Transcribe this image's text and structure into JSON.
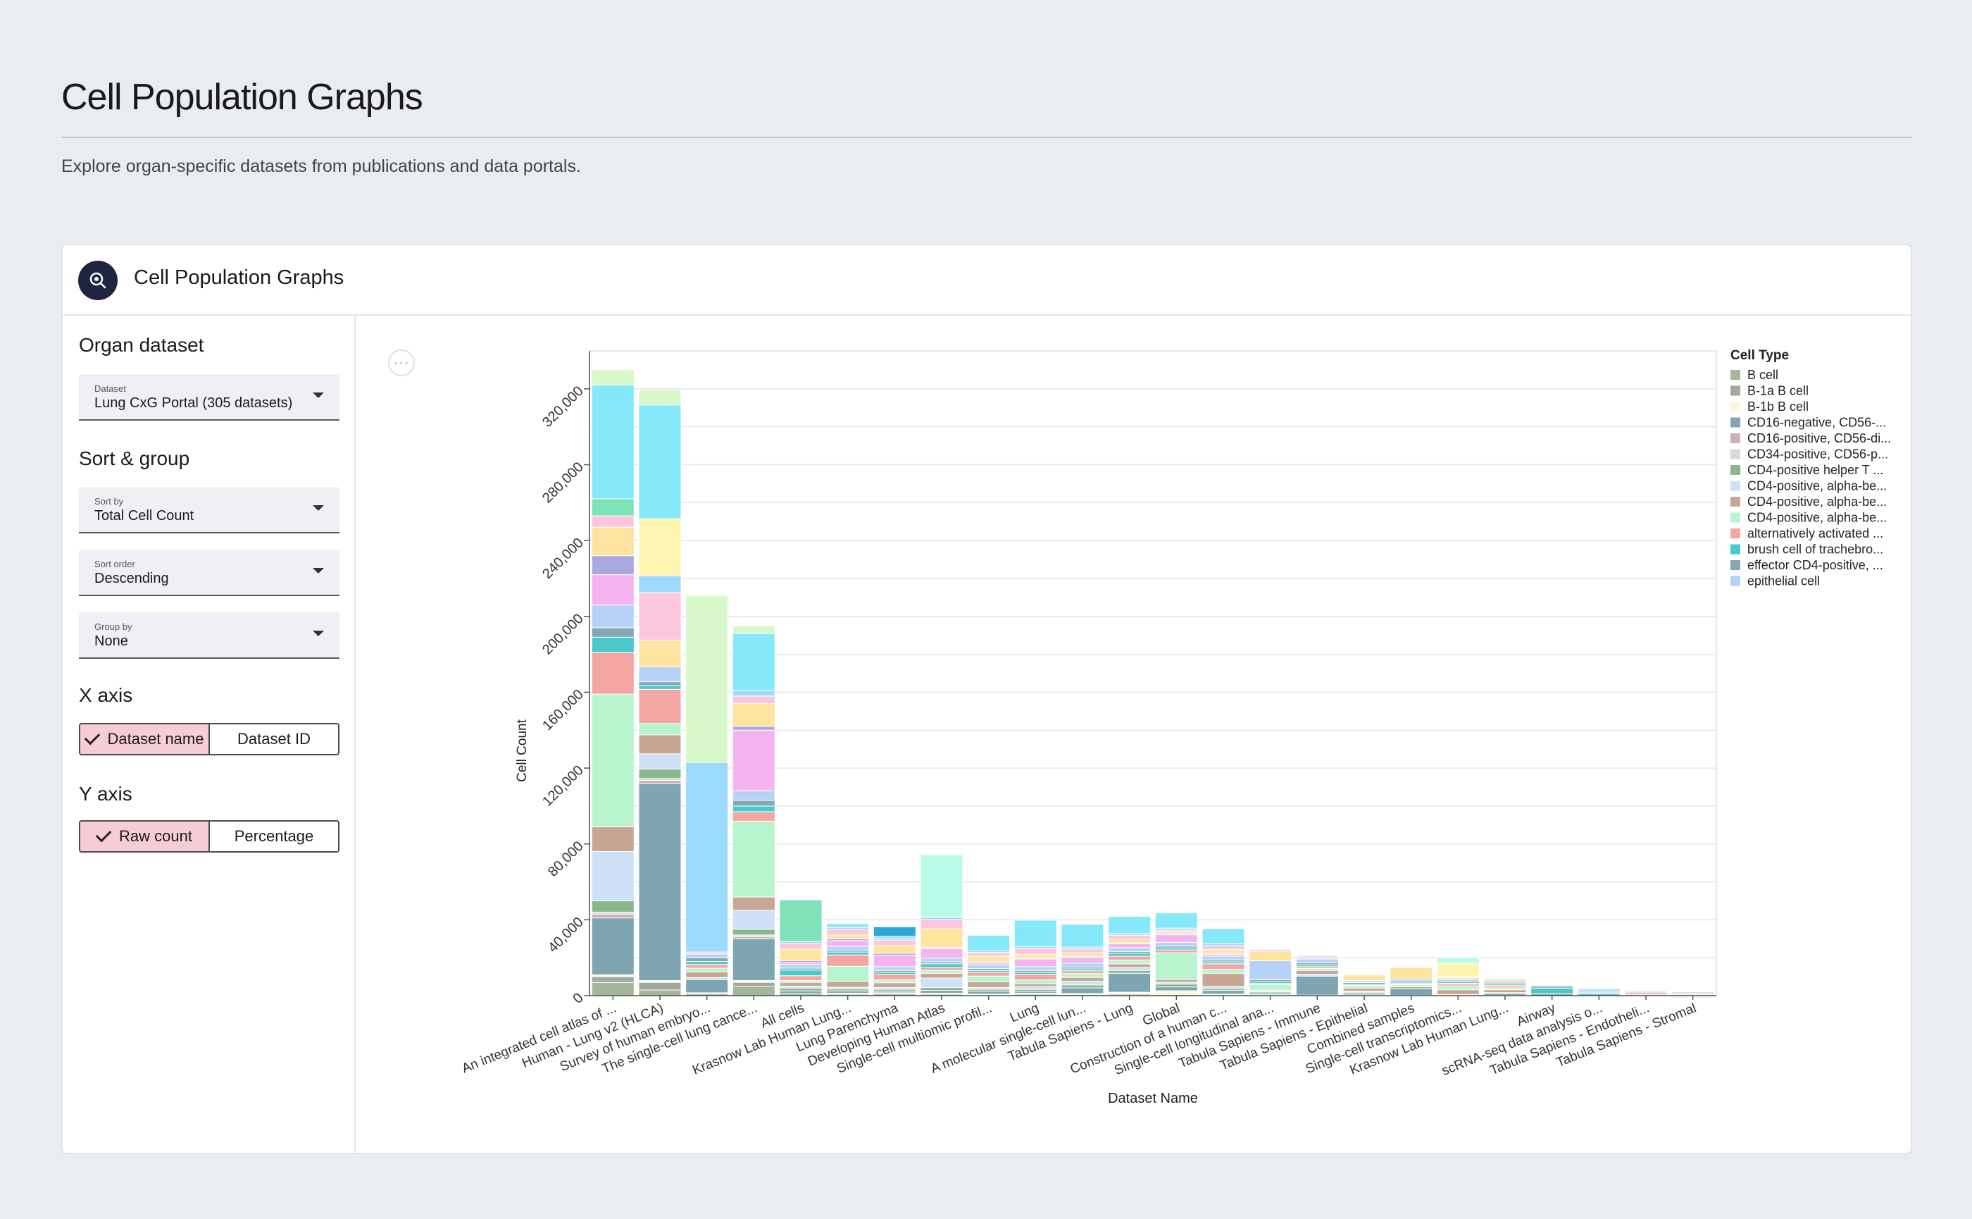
{
  "page": {
    "title": "Cell Population Graphs",
    "subtitle": "Explore organ-specific datasets from publications and data portals."
  },
  "card": {
    "title": "Cell Population Graphs",
    "icon": "search-magnifier-icon",
    "icon_color": "#1f2440"
  },
  "sidebar": {
    "organ_section": "Organ dataset",
    "dataset_select": {
      "label": "Dataset",
      "value": "Lung CxG Portal (305 datasets)"
    },
    "sort_section": "Sort & group",
    "sort_by": {
      "label": "Sort by",
      "value": "Total Cell Count"
    },
    "sort_order": {
      "label": "Sort order",
      "value": "Descending"
    },
    "group_by": {
      "label": "Group by",
      "value": "None"
    },
    "x_axis_section": "X axis",
    "x_axis_options": [
      "Dataset name",
      "Dataset ID"
    ],
    "x_axis_selected": "Dataset name",
    "y_axis_section": "Y axis",
    "y_axis_options": [
      "Raw count",
      "Percentage"
    ],
    "y_axis_selected": "Raw count",
    "active_toggle_color": "#f6cdd6"
  },
  "menu_button": {
    "label": "···",
    "icon": "more-horizontal-icon"
  },
  "chart_data": {
    "type": "bar",
    "stacked": true,
    "xlabel": "Dataset Name",
    "ylabel": "Cell Count",
    "ylim": [
      0,
      340000
    ],
    "yticks": [
      0,
      40000,
      80000,
      120000,
      160000,
      200000,
      240000,
      280000,
      320000
    ],
    "ytick_labels": [
      "0",
      "40,000",
      "80,000",
      "120,000",
      "160,000",
      "200,000",
      "240,000",
      "280,000",
      "320,000"
    ],
    "grid": true,
    "legend_title": "Cell Type",
    "legend_position": "right",
    "categories": [
      "An integrated cell atlas of ...",
      "Human - Lung v2 (HLCA)",
      "Survey of human embryo...",
      "The single-cell lung cance...",
      "All cells",
      "Krasnow Lab Human Lung...",
      "Lung Parenchyma",
      "Developing Human Atlas",
      "Single-cell multiomic profil...",
      "Lung",
      "A molecular single-cell lun...",
      "Tabula Sapiens - Lung",
      "Global",
      "Construction of a human c...",
      "Single-cell longitudinal ana...",
      "Tabula Sapiens - Immune",
      "Tabula Sapiens - Epithelial",
      "Combined samples",
      "Single-cell transcriptomics...",
      "Krasnow Lab Human Lung...",
      "Airway",
      "scRNA-seq data analysis o...",
      "Tabula Sapiens - Endotheli...",
      "Tabula Sapiens - Stromal"
    ],
    "series": [
      {
        "name": "B cell",
        "color": "#a4b79c",
        "values": [
          7000,
          3000,
          1000,
          5000,
          1000,
          800,
          1000,
          800,
          300,
          800,
          600,
          800,
          600,
          300,
          200,
          300,
          400,
          200,
          100,
          100,
          0,
          0,
          0,
          0
        ]
      },
      {
        "name": "B-1a B cell",
        "color": "#a1a89c",
        "values": [
          3000,
          4000,
          0,
          2000,
          0,
          0,
          0,
          0,
          0,
          0,
          0,
          0,
          0,
          0,
          0,
          0,
          0,
          0,
          0,
          0,
          0,
          0,
          0,
          0
        ]
      },
      {
        "name": "B-1b B cell",
        "color": "#fbf7dc",
        "values": [
          1000,
          1000,
          500,
          1000,
          0,
          500,
          500,
          500,
          500,
          500,
          500,
          1000,
          2000,
          500,
          200,
          0,
          0,
          0,
          0,
          0,
          0,
          0,
          0,
          0
        ]
      },
      {
        "name": "CD16-negative, CD56-...",
        "color": "#7ea6b2",
        "values": [
          30000,
          104000,
          7000,
          22000,
          1500,
          1200,
          800,
          1500,
          1500,
          1000,
          3000,
          10000,
          2000,
          2000,
          500,
          10000,
          1000,
          3500,
          0,
          1000,
          1000,
          0,
          0,
          0
        ]
      },
      {
        "name": "CD16-positive, CD56-di...",
        "color": "#c9b0b9",
        "values": [
          2000,
          1500,
          0,
          1000,
          0,
          0,
          0,
          0,
          0,
          0,
          0,
          0,
          0,
          0,
          0,
          0,
          0,
          0,
          0,
          0,
          0,
          0,
          0,
          0
        ]
      },
      {
        "name": "CD34-positive, CD56-p...",
        "color": "#d7dbd3",
        "values": [
          1000,
          1000,
          0,
          1000,
          0,
          0,
          0,
          0,
          0,
          0,
          0,
          0,
          0,
          0,
          0,
          0,
          0,
          0,
          0,
          0,
          0,
          0,
          0,
          0
        ]
      },
      {
        "name": "CD4-positive helper T ...",
        "color": "#8ab88e",
        "values": [
          6000,
          5000,
          0,
          3000,
          1500,
          1000,
          1000,
          1500,
          1000,
          1000,
          1500,
          1500,
          1500,
          1000,
          1000,
          0,
          500,
          0,
          0,
          0,
          0,
          0,
          0,
          0
        ]
      },
      {
        "name": "CD4-positive, alpha-be...",
        "color": "#cde0f6",
        "values": [
          26000,
          8000,
          1000,
          10000,
          1000,
          1000,
          1000,
          5000,
          1000,
          1500,
          2000,
          1500,
          1000,
          1000,
          500,
          1000,
          500,
          0,
          500,
          500,
          0,
          0,
          0,
          0
        ]
      },
      {
        "name": "CD4-positive, alpha-be...",
        "color": "#c7a694",
        "values": [
          13000,
          10000,
          3000,
          7000,
          2000,
          3000,
          2500,
          2500,
          3000,
          1500,
          2000,
          2000,
          1500,
          7000,
          500,
          2000,
          1500,
          1000,
          2500,
          1500,
          0,
          0,
          500,
          500
        ]
      },
      {
        "name": "CD4-positive, alpha-be...",
        "color": "#b8f5cf",
        "values": [
          70000,
          6000,
          2000,
          40000,
          1000,
          8000,
          1500,
          1500,
          3000,
          2000,
          2000,
          2000,
          14000,
          2000,
          3000,
          1000,
          1000,
          1000,
          2000,
          1000,
          0,
          0,
          0,
          0
        ]
      },
      {
        "name": "alternatively activated ...",
        "color": "#f4a6a2",
        "values": [
          22000,
          18000,
          2000,
          5000,
          2500,
          6000,
          3000,
          1500,
          2000,
          3000,
          1500,
          2000,
          1500,
          3000,
          500,
          1000,
          500,
          500,
          1000,
          1000,
          0,
          0,
          1000,
          500
        ]
      },
      {
        "name": "brush cell of trachebro...",
        "color": "#4ac9cb",
        "values": [
          8000,
          2000,
          1500,
          3000,
          3000,
          1500,
          1000,
          2000,
          1000,
          1000,
          1000,
          1500,
          1000,
          1000,
          1000,
          1000,
          500,
          500,
          500,
          500,
          3000,
          1000,
          500,
          500
        ]
      },
      {
        "name": "effector CD4-positive, ...",
        "color": "#82a8b4",
        "values": [
          5000,
          2000,
          2000,
          3000,
          1000,
          1000,
          1000,
          1000,
          1000,
          1000,
          1000,
          1000,
          1000,
          1000,
          1000,
          1000,
          1000,
          1000,
          1000,
          1000,
          1000,
          500,
          500,
          500
        ]
      },
      {
        "name": "epithelial cell",
        "color": "#b6d3f7",
        "values": [
          12000,
          8000,
          2000,
          5000,
          2000,
          2000,
          2000,
          2000,
          2000,
          2000,
          2000,
          2000,
          2000,
          2000,
          10000,
          2000,
          1000,
          1000,
          1000,
          1000,
          500,
          1000,
          0,
          0
        ]
      },
      {
        "name": "",
        "color": "#f5b3ef",
        "values": [
          16000,
          0,
          0,
          32000,
          1000,
          3000,
          6000,
          5000,
          1000,
          4000,
          3000,
          2000,
          4000,
          1000,
          0,
          0,
          0,
          0,
          0,
          0,
          0,
          0,
          0,
          0
        ]
      },
      {
        "name": "",
        "color": "#a9a8e0",
        "values": [
          10000,
          0,
          0,
          2000,
          1000,
          1000,
          1000,
          500,
          500,
          500,
          500,
          500,
          500,
          500,
          0,
          500,
          0,
          0,
          0,
          0,
          0,
          0,
          0,
          0
        ]
      },
      {
        "name": "",
        "color": "#fde5a0",
        "values": [
          15000,
          14000,
          0,
          12000,
          6000,
          2000,
          4000,
          10000,
          3000,
          2000,
          2000,
          2000,
          1000,
          2000,
          5000,
          0,
          3000,
          6000,
          1000,
          1000,
          0,
          0,
          0,
          0
        ]
      },
      {
        "name": "",
        "color": "#fdc6dc",
        "values": [
          6000,
          25000,
          1000,
          4000,
          3000,
          3000,
          3000,
          5000,
          2000,
          3000,
          2000,
          2000,
          1000,
          2000,
          1000,
          1000,
          500,
          500,
          500,
          500,
          0,
          0,
          0,
          0
        ]
      },
      {
        "name": "",
        "color": "#9bdafb",
        "values": [
          0,
          9000,
          100000,
          3000,
          1000,
          1000,
          1000,
          1000,
          1000,
          1000,
          1000,
          1000,
          1000,
          1000,
          0,
          500,
          0,
          0,
          0,
          0,
          0,
          1000,
          0,
          0
        ]
      },
      {
        "name": "",
        "color": "#7fe1b8",
        "values": [
          9000,
          0,
          0,
          0,
          22000,
          0,
          0,
          0,
          0,
          0,
          0,
          0,
          0,
          0,
          0,
          0,
          0,
          0,
          0,
          0,
          0,
          0,
          0,
          0
        ]
      },
      {
        "name": "",
        "color": "#fff5b0",
        "values": [
          0,
          30000,
          0,
          0,
          0,
          0,
          0,
          0,
          0,
          0,
          0,
          0,
          0,
          0,
          0,
          0,
          0,
          0,
          7000,
          0,
          0,
          0,
          0,
          0
        ]
      },
      {
        "name": "",
        "color": "#b8fbe9",
        "values": [
          0,
          0,
          0,
          0,
          0,
          0,
          0,
          33000,
          0,
          0,
          0,
          0,
          0,
          0,
          0,
          0,
          0,
          0,
          3000,
          0,
          0,
          0,
          0,
          0
        ]
      },
      {
        "name": "",
        "color": "#85e8fb",
        "values": [
          60000,
          60000,
          0,
          30000,
          0,
          2000,
          1000,
          0,
          8000,
          14000,
          12000,
          9000,
          8000,
          8000,
          0,
          0,
          0,
          0,
          0,
          0,
          0,
          0,
          0,
          0
        ]
      },
      {
        "name": "",
        "color": "#d9f8c9",
        "values": [
          8000,
          8000,
          88000,
          4000,
          0,
          0,
          0,
          0,
          0,
          0,
          0,
          0,
          0,
          0,
          0,
          0,
          0,
          0,
          0,
          0,
          0,
          0,
          0,
          0
        ]
      },
      {
        "name": "",
        "color": "#2ea7d8",
        "values": [
          0,
          0,
          0,
          0,
          0,
          0,
          5000,
          0,
          0,
          0,
          0,
          0,
          0,
          0,
          0,
          0,
          0,
          0,
          0,
          0,
          0,
          0,
          0,
          0
        ]
      }
    ]
  }
}
